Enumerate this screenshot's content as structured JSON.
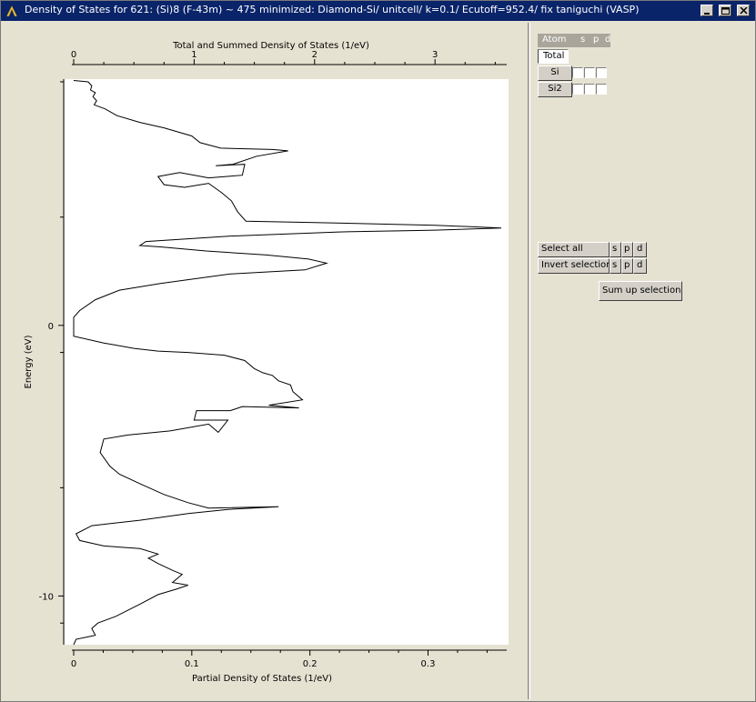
{
  "window": {
    "title": "Density of States for 621: (Si)8  (F-43m) ~ 475 minimized: Diamond-Si/ unitcell/ k=0.1/ Ecutoff=952.4/ fix taniguchi (VASP)"
  },
  "chart_data": {
    "type": "line",
    "title": "Total and Summed Density of States (1/eV)",
    "xlabel": "Partial Density of States (1/eV)",
    "ylabel": "Energy (eV)",
    "top_axis": {
      "label": "Total and Summed Density of States (1/eV)",
      "ticks": [
        "0",
        "1",
        "2",
        "3"
      ],
      "range": [
        0,
        3.55
      ]
    },
    "bottom_axis": {
      "label": "Partial Density of States (1/eV)",
      "ticks": [
        "0",
        "0.1",
        "0.2",
        "0.3"
      ],
      "range": [
        0,
        0.362
      ]
    },
    "left_axis": {
      "label": "Energy (eV)",
      "ticks": [
        "0",
        "-10"
      ],
      "range": [
        -11.8,
        9.1
      ]
    },
    "series": [
      {
        "values_xy": [
          [
            0.0,
            9.05
          ],
          [
            0.12,
            9.0
          ],
          [
            0.15,
            8.85
          ],
          [
            0.14,
            8.7
          ],
          [
            0.18,
            8.6
          ],
          [
            0.16,
            8.45
          ],
          [
            0.19,
            8.3
          ],
          [
            0.17,
            8.15
          ],
          [
            0.26,
            8.0
          ],
          [
            0.36,
            7.75
          ],
          [
            0.55,
            7.5
          ],
          [
            0.75,
            7.3
          ],
          [
            0.98,
            7.0
          ],
          [
            1.05,
            6.75
          ],
          [
            1.22,
            6.55
          ],
          [
            1.65,
            6.5
          ],
          [
            1.78,
            6.45
          ],
          [
            1.52,
            6.25
          ],
          [
            1.32,
            5.95
          ],
          [
            1.18,
            5.9
          ],
          [
            1.42,
            5.95
          ],
          [
            1.4,
            5.55
          ],
          [
            1.12,
            5.45
          ],
          [
            0.88,
            5.65
          ],
          [
            0.7,
            5.5
          ],
          [
            0.75,
            5.2
          ],
          [
            0.92,
            5.1
          ],
          [
            1.12,
            5.25
          ],
          [
            1.23,
            4.9
          ],
          [
            1.31,
            4.6
          ],
          [
            1.36,
            4.2
          ],
          [
            1.43,
            3.85
          ],
          [
            2.0,
            3.8
          ],
          [
            3.0,
            3.7
          ],
          [
            3.55,
            3.6
          ],
          [
            3.0,
            3.52
          ],
          [
            2.2,
            3.45
          ],
          [
            1.3,
            3.3
          ],
          [
            0.6,
            3.1
          ],
          [
            0.55,
            2.95
          ],
          [
            0.72,
            2.9
          ],
          [
            1.1,
            2.75
          ],
          [
            1.6,
            2.6
          ],
          [
            1.95,
            2.45
          ],
          [
            2.1,
            2.3
          ],
          [
            1.92,
            2.05
          ],
          [
            1.3,
            1.9
          ],
          [
            0.72,
            1.55
          ],
          [
            0.38,
            1.3
          ],
          [
            0.18,
            0.95
          ],
          [
            0.05,
            0.55
          ],
          [
            0.0,
            0.3
          ],
          [
            0.0,
            -0.4
          ],
          [
            0.25,
            -0.65
          ],
          [
            0.5,
            -0.85
          ],
          [
            0.7,
            -0.95
          ],
          [
            0.95,
            -1.0
          ],
          [
            1.25,
            -1.1
          ],
          [
            1.42,
            -1.3
          ],
          [
            1.5,
            -1.6
          ],
          [
            1.57,
            -1.75
          ],
          [
            1.65,
            -1.85
          ],
          [
            1.7,
            -2.05
          ],
          [
            1.8,
            -2.2
          ],
          [
            1.82,
            -2.45
          ],
          [
            1.9,
            -2.75
          ],
          [
            1.62,
            -2.95
          ],
          [
            1.87,
            -3.05
          ],
          [
            1.4,
            -3.0
          ],
          [
            1.3,
            -3.15
          ],
          [
            1.02,
            -3.15
          ],
          [
            1.0,
            -3.5
          ],
          [
            1.28,
            -3.5
          ],
          [
            1.2,
            -3.95
          ],
          [
            1.12,
            -3.65
          ],
          [
            0.8,
            -3.9
          ],
          [
            0.45,
            -4.05
          ],
          [
            0.25,
            -4.2
          ],
          [
            0.22,
            -4.7
          ],
          [
            0.3,
            -5.2
          ],
          [
            0.38,
            -5.5
          ],
          [
            0.55,
            -5.85
          ],
          [
            0.75,
            -6.25
          ],
          [
            0.95,
            -6.55
          ],
          [
            1.12,
            -6.75
          ],
          [
            1.7,
            -6.7
          ],
          [
            1.28,
            -6.8
          ],
          [
            0.95,
            -6.95
          ],
          [
            0.55,
            -7.2
          ],
          [
            0.15,
            -7.4
          ],
          [
            0.02,
            -7.7
          ],
          [
            0.05,
            -7.95
          ],
          [
            0.25,
            -8.15
          ],
          [
            0.55,
            -8.25
          ],
          [
            0.7,
            -8.45
          ],
          [
            0.62,
            -8.6
          ],
          [
            0.7,
            -8.8
          ],
          [
            0.82,
            -9.05
          ],
          [
            0.9,
            -9.2
          ],
          [
            0.82,
            -9.5
          ],
          [
            0.95,
            -9.6
          ],
          [
            0.85,
            -9.75
          ],
          [
            0.7,
            -9.95
          ],
          [
            0.55,
            -10.3
          ],
          [
            0.35,
            -10.75
          ],
          [
            0.2,
            -11.0
          ],
          [
            0.15,
            -11.2
          ],
          [
            0.18,
            -11.45
          ],
          [
            0.02,
            -11.6
          ],
          [
            0.0,
            -11.8
          ]
        ]
      }
    ],
    "grid": false
  },
  "side": {
    "header": {
      "atom": "Atom",
      "s": "s",
      "p": "p",
      "d": "d"
    },
    "total_tab": "Total",
    "atoms": [
      "Si",
      "Si2"
    ],
    "select_all": "Select all",
    "invert_selection": "Invert selection",
    "orbital_buttons": [
      "s",
      "p",
      "d"
    ],
    "sum_up": "Sum up selection"
  },
  "colors": {
    "titlebar": "#0a246a",
    "plot_bg": "#ffffff",
    "line": "#000000",
    "panel": "#e6e2d2"
  }
}
